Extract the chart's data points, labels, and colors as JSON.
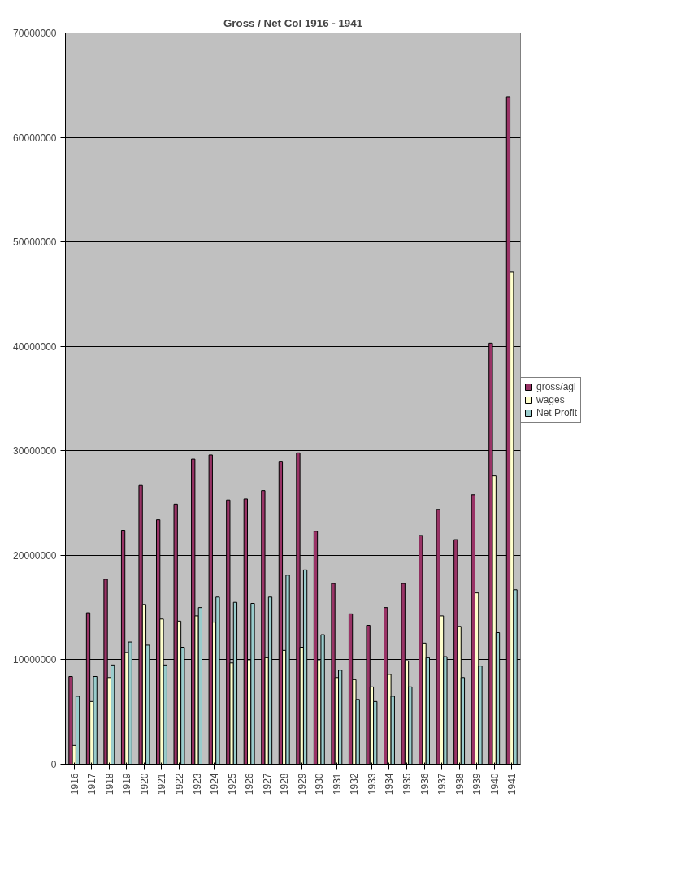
{
  "chart_data": {
    "type": "bar",
    "title": "Gross / Net Col 1916 - 1941",
    "categories": [
      "1916",
      "1917",
      "1918",
      "1919",
      "1920",
      "1921",
      "1922",
      "1923",
      "1924",
      "1925",
      "1926",
      "1927",
      "1928",
      "1929",
      "1930",
      "1931",
      "1932",
      "1933",
      "1934",
      "1935",
      "1936",
      "1937",
      "1938",
      "1939",
      "1940",
      "1941"
    ],
    "series": [
      {
        "name": "gross/agi",
        "color": "#993366",
        "values": [
          8400000,
          14500000,
          17700000,
          22400000,
          26700000,
          23400000,
          24900000,
          29200000,
          29600000,
          25300000,
          25400000,
          26200000,
          29000000,
          29800000,
          22300000,
          17300000,
          14400000,
          13300000,
          15000000,
          17300000,
          21900000,
          24400000,
          21500000,
          25800000,
          40300000,
          63900000
        ]
      },
      {
        "name": "wages",
        "color": "#ffffcc",
        "values": [
          1800000,
          6000000,
          8300000,
          10700000,
          15300000,
          13900000,
          13700000,
          14200000,
          13600000,
          9700000,
          10000000,
          10200000,
          10900000,
          11200000,
          9900000,
          8300000,
          8100000,
          7400000,
          8600000,
          9900000,
          11600000,
          14200000,
          13200000,
          16400000,
          27600000,
          47100000
        ]
      },
      {
        "name": "Net Profit",
        "color": "#99cccc",
        "values": [
          6500000,
          8400000,
          9500000,
          11700000,
          11400000,
          9500000,
          11200000,
          15000000,
          16000000,
          15500000,
          15400000,
          16000000,
          18100000,
          18600000,
          12400000,
          9000000,
          6200000,
          6000000,
          6500000,
          7400000,
          10200000,
          10300000,
          8300000,
          9400000,
          12600000,
          16700000
        ]
      }
    ],
    "ylim": [
      0,
      70000000
    ],
    "yticks": [
      0,
      10000000,
      20000000,
      30000000,
      40000000,
      50000000,
      60000000,
      70000000
    ],
    "grid": "y",
    "legend": "right"
  }
}
